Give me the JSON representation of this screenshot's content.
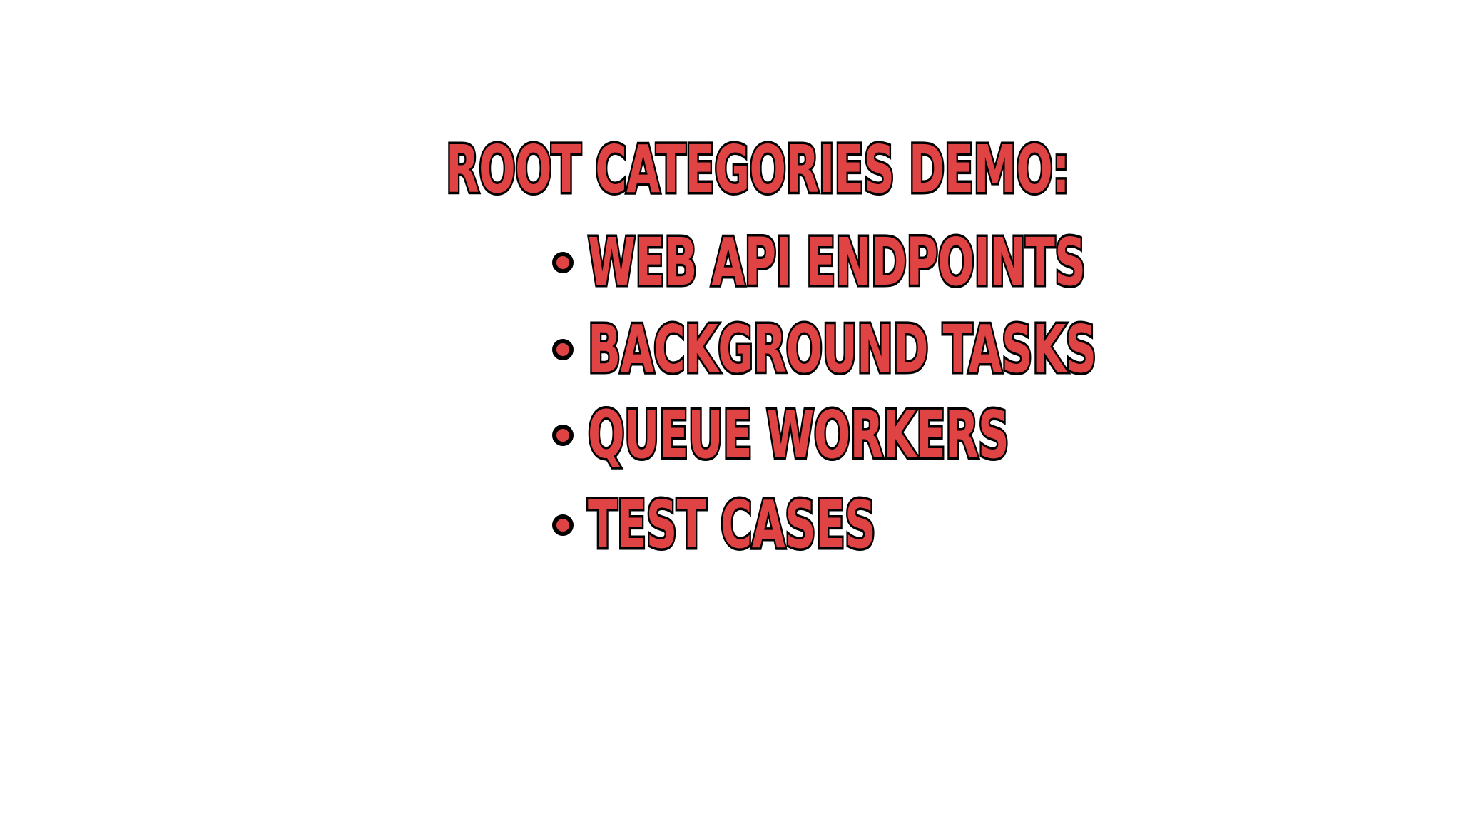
{
  "slide": {
    "heading": "ROOT CATEGORIES DEMO:",
    "items": [
      {
        "label": "WEB API ENDPOINTS"
      },
      {
        "label": "BACKGROUND TASKS"
      },
      {
        "label": "QUEUE WORKERS"
      },
      {
        "label": "TEST CASES"
      }
    ],
    "bullet_icon": "circle-bullet-icon",
    "colors": {
      "text_fill": "#df4343",
      "text_outline": "#000000",
      "background": "#ffffff"
    }
  }
}
